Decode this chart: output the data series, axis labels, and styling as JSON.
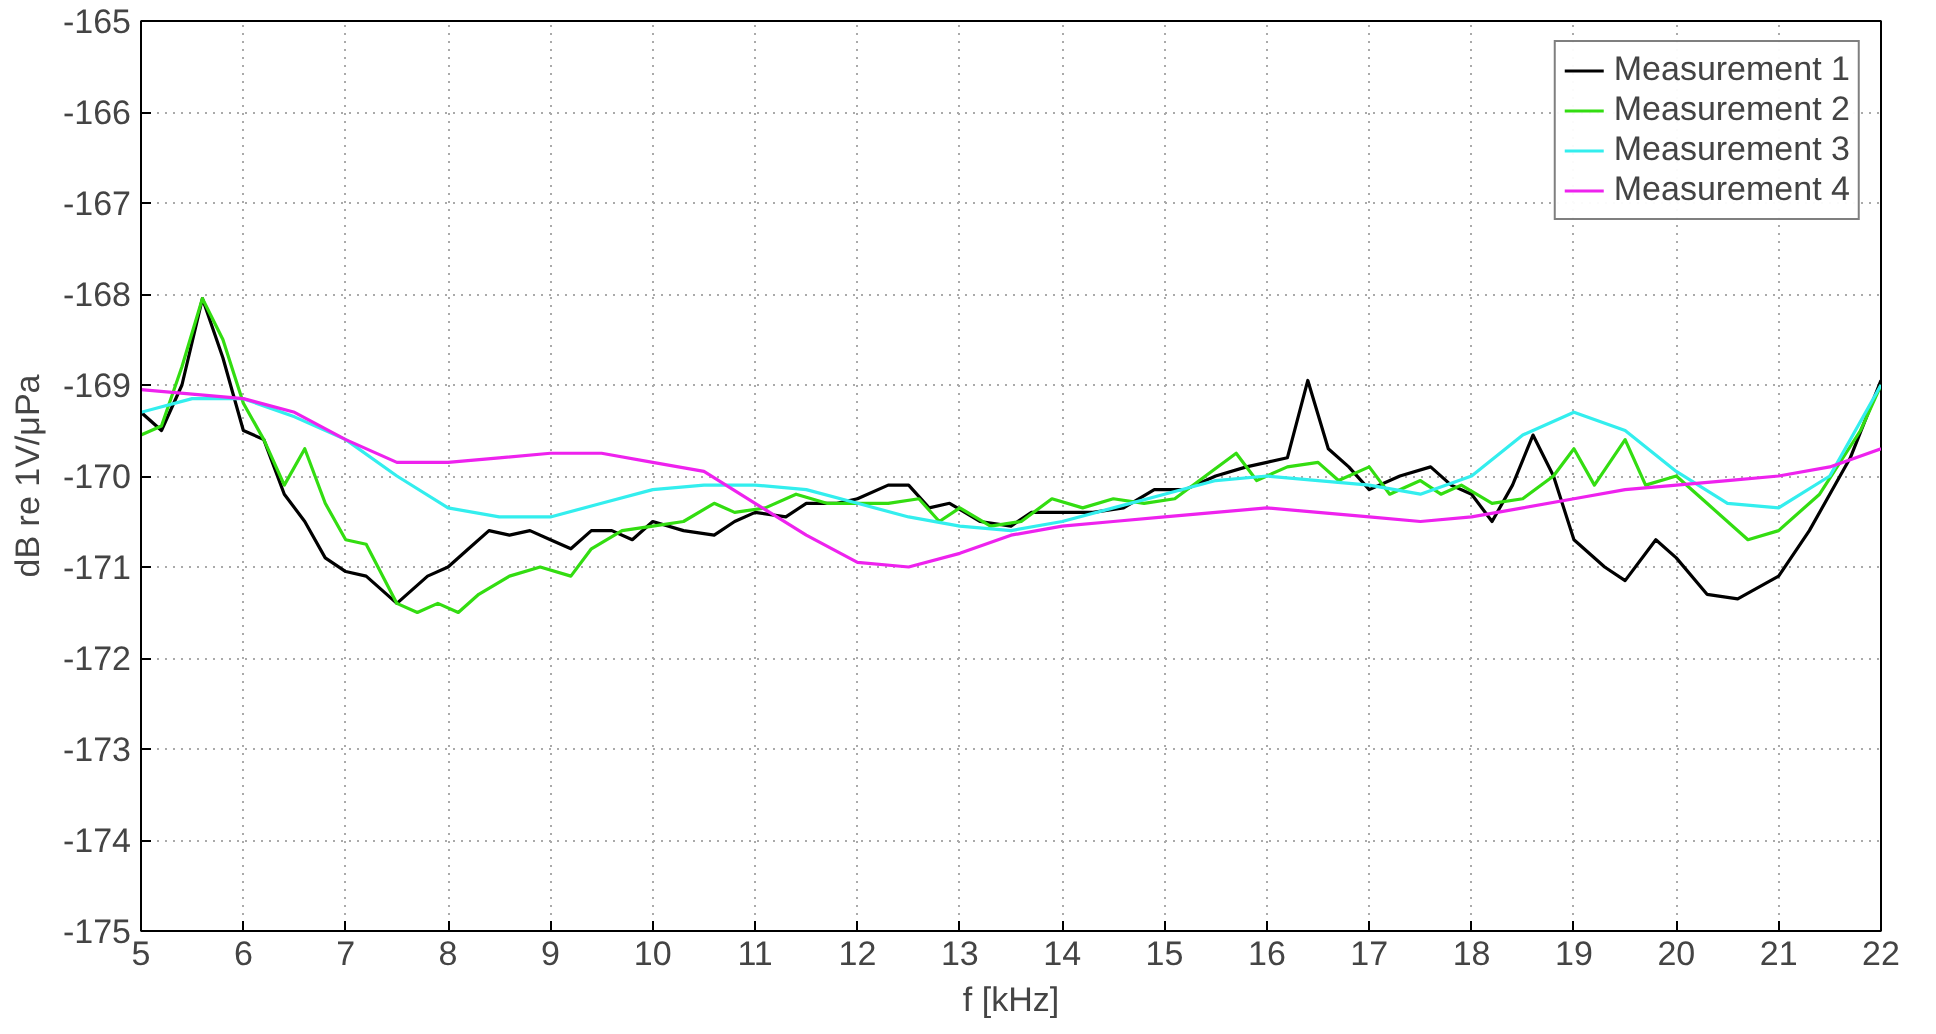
{
  "chart_data": {
    "type": "line",
    "xlabel": "f [kHz]",
    "ylabel": "dB re 1V/μPa",
    "xlim": [
      5,
      22
    ],
    "xticks": [
      5,
      6,
      7,
      8,
      9,
      10,
      11,
      12,
      13,
      14,
      15,
      16,
      17,
      18,
      19,
      20,
      21,
      22
    ],
    "ylim": [
      -175,
      -165
    ],
    "yticks": [
      -175,
      -174,
      -173,
      -172,
      -171,
      -170,
      -169,
      -168,
      -167,
      -166,
      -165
    ],
    "grid": true,
    "legend": "top right",
    "series": [
      {
        "name": "Measurement 1",
        "color": "#000000",
        "x": [
          5,
          5.2,
          5.4,
          5.6,
          5.8,
          6.0,
          6.2,
          6.4,
          6.6,
          6.8,
          7.0,
          7.2,
          7.5,
          7.8,
          8.0,
          8.2,
          8.4,
          8.6,
          8.8,
          9.0,
          9.2,
          9.4,
          9.6,
          9.8,
          10.0,
          10.3,
          10.6,
          10.8,
          11.0,
          11.3,
          11.5,
          11.8,
          12.0,
          12.3,
          12.5,
          12.7,
          12.9,
          13.2,
          13.5,
          13.7,
          14.0,
          14.3,
          14.6,
          14.9,
          15.2,
          15.5,
          15.8,
          16.0,
          16.2,
          16.4,
          16.6,
          16.8,
          17.0,
          17.3,
          17.6,
          17.8,
          18.0,
          18.2,
          18.4,
          18.6,
          18.8,
          19.0,
          19.3,
          19.5,
          19.8,
          20.0,
          20.3,
          20.6,
          21.0,
          21.3,
          21.7,
          22.0
        ],
        "values": [
          -169.3,
          -169.5,
          -169.0,
          -168.05,
          -168.7,
          -169.5,
          -169.6,
          -170.2,
          -170.5,
          -170.9,
          -171.05,
          -171.1,
          -171.4,
          -171.1,
          -171.0,
          -170.8,
          -170.6,
          -170.65,
          -170.6,
          -170.7,
          -170.8,
          -170.6,
          -170.6,
          -170.7,
          -170.5,
          -170.6,
          -170.65,
          -170.5,
          -170.4,
          -170.45,
          -170.3,
          -170.3,
          -170.25,
          -170.1,
          -170.1,
          -170.35,
          -170.3,
          -170.5,
          -170.55,
          -170.4,
          -170.4,
          -170.4,
          -170.35,
          -170.15,
          -170.15,
          -170.0,
          -169.9,
          -169.85,
          -169.8,
          -168.95,
          -169.7,
          -169.9,
          -170.15,
          -170.0,
          -169.9,
          -170.1,
          -170.2,
          -170.5,
          -170.1,
          -169.55,
          -170.0,
          -170.7,
          -171.0,
          -171.15,
          -170.7,
          -170.9,
          -171.3,
          -171.35,
          -171.1,
          -170.6,
          -169.8,
          -168.95
        ]
      },
      {
        "name": "Measurement 2",
        "color": "#33dd11",
        "x": [
          5,
          5.2,
          5.4,
          5.6,
          5.8,
          6.0,
          6.2,
          6.4,
          6.6,
          6.8,
          7.0,
          7.2,
          7.5,
          7.7,
          7.9,
          8.1,
          8.3,
          8.6,
          8.9,
          9.2,
          9.4,
          9.7,
          10.0,
          10.3,
          10.6,
          10.8,
          11.1,
          11.4,
          11.7,
          12.0,
          12.3,
          12.6,
          12.8,
          13.0,
          13.3,
          13.6,
          13.9,
          14.2,
          14.5,
          14.8,
          15.1,
          15.4,
          15.7,
          15.9,
          16.2,
          16.5,
          16.7,
          17.0,
          17.2,
          17.5,
          17.7,
          17.9,
          18.2,
          18.5,
          18.8,
          19.0,
          19.2,
          19.5,
          19.7,
          20.0,
          20.3,
          20.7,
          21.0,
          21.4,
          21.8,
          22.0
        ],
        "values": [
          -169.55,
          -169.45,
          -168.8,
          -168.05,
          -168.5,
          -169.2,
          -169.6,
          -170.1,
          -169.7,
          -170.3,
          -170.7,
          -170.75,
          -171.4,
          -171.5,
          -171.4,
          -171.5,
          -171.3,
          -171.1,
          -171.0,
          -171.1,
          -170.8,
          -170.6,
          -170.55,
          -170.5,
          -170.3,
          -170.4,
          -170.35,
          -170.2,
          -170.3,
          -170.3,
          -170.3,
          -170.25,
          -170.5,
          -170.35,
          -170.55,
          -170.5,
          -170.25,
          -170.35,
          -170.25,
          -170.3,
          -170.25,
          -170.0,
          -169.75,
          -170.05,
          -169.9,
          -169.85,
          -170.05,
          -169.9,
          -170.2,
          -170.05,
          -170.2,
          -170.1,
          -170.3,
          -170.25,
          -170.0,
          -169.7,
          -170.1,
          -169.6,
          -170.1,
          -170.0,
          -170.3,
          -170.7,
          -170.6,
          -170.2,
          -169.5,
          -169.0
        ]
      },
      {
        "name": "Measurement 3",
        "color": "#33eeee",
        "x": [
          5,
          5.5,
          6,
          6.5,
          7,
          7.5,
          8,
          8.5,
          9,
          9.5,
          10,
          10.5,
          11,
          11.5,
          12,
          12.5,
          13,
          13.5,
          14,
          14.5,
          15,
          15.5,
          16,
          16.5,
          17,
          17.5,
          18,
          18.5,
          19,
          19.5,
          20,
          20.5,
          21,
          21.5,
          22
        ],
        "values": [
          -169.3,
          -169.15,
          -169.15,
          -169.35,
          -169.6,
          -170.0,
          -170.35,
          -170.45,
          -170.45,
          -170.3,
          -170.15,
          -170.1,
          -170.1,
          -170.15,
          -170.3,
          -170.45,
          -170.55,
          -170.6,
          -170.5,
          -170.35,
          -170.2,
          -170.05,
          -170.0,
          -170.05,
          -170.1,
          -170.2,
          -170.0,
          -169.55,
          -169.3,
          -169.5,
          -169.95,
          -170.3,
          -170.35,
          -170.0,
          -169.0
        ]
      },
      {
        "name": "Measurement 4",
        "color": "#ee22ee",
        "x": [
          5,
          5.5,
          6,
          6.5,
          7,
          7.5,
          8,
          8.5,
          9,
          9.5,
          10,
          10.5,
          11,
          11.5,
          12,
          12.5,
          13,
          13.5,
          14,
          14.5,
          15,
          15.5,
          16,
          16.5,
          17,
          17.5,
          18,
          18.5,
          19,
          19.5,
          20,
          20.5,
          21,
          21.5,
          22
        ],
        "values": [
          -169.05,
          -169.1,
          -169.15,
          -169.3,
          -169.6,
          -169.85,
          -169.85,
          -169.8,
          -169.75,
          -169.75,
          -169.85,
          -169.95,
          -170.3,
          -170.65,
          -170.95,
          -171.0,
          -170.85,
          -170.65,
          -170.55,
          -170.5,
          -170.45,
          -170.4,
          -170.35,
          -170.4,
          -170.45,
          -170.5,
          -170.45,
          -170.35,
          -170.25,
          -170.15,
          -170.1,
          -170.05,
          -170.0,
          -169.9,
          -169.7
        ]
      }
    ]
  }
}
